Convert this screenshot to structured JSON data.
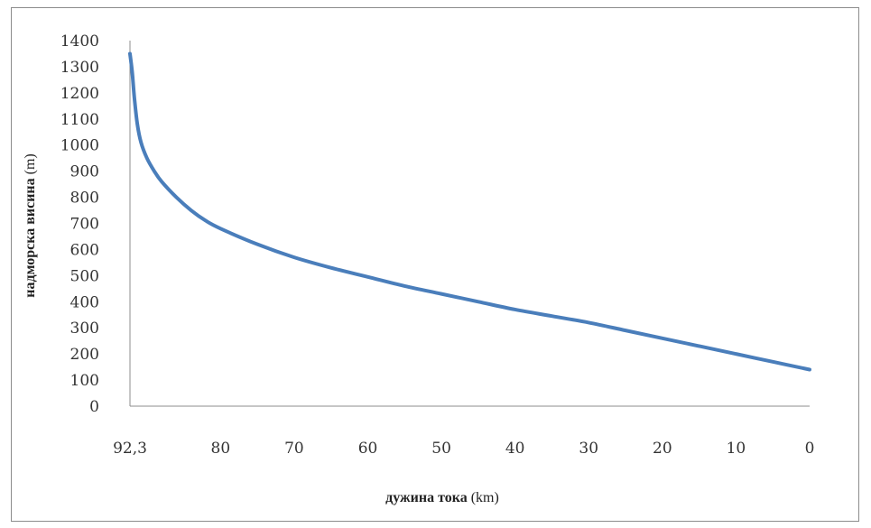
{
  "chart_data": {
    "type": "line",
    "title": "",
    "xlabel": "дужина тока",
    "xlabel_unit": "(km)",
    "ylabel": "надморска висина",
    "ylabel_unit": "(m)",
    "x_reversed": true,
    "xlim": [
      92.3,
      0
    ],
    "ylim": [
      0,
      1400
    ],
    "x_tick_labels": [
      "92,3",
      "80",
      "70",
      "60",
      "50",
      "40",
      "30",
      "20",
      "10",
      "0"
    ],
    "x_tick_values": [
      92.3,
      80,
      70,
      60,
      50,
      40,
      30,
      20,
      10,
      0
    ],
    "y_ticks": [
      0,
      100,
      200,
      300,
      400,
      500,
      600,
      700,
      800,
      900,
      1000,
      1100,
      1200,
      1300,
      1400
    ],
    "grid": false,
    "legend": "none",
    "series": [
      {
        "color": "#4a7ebb",
        "x": [
          92.3,
          92.0,
          91.7,
          91.3,
          90.8,
          90.0,
          89.0,
          88.0,
          86.0,
          84.0,
          82.0,
          80.0,
          75.0,
          70.0,
          65.0,
          60.0,
          55.0,
          50.0,
          45.0,
          40.0,
          35.0,
          30.0,
          25.0,
          20.0,
          15.0,
          10.0,
          5.0,
          0.0
        ],
        "y": [
          1350,
          1280,
          1180,
          1080,
          1010,
          950,
          900,
          860,
          800,
          750,
          710,
          680,
          620,
          570,
          530,
          495,
          460,
          430,
          400,
          370,
          345,
          320,
          290,
          260,
          230,
          200,
          170,
          140
        ]
      }
    ]
  }
}
